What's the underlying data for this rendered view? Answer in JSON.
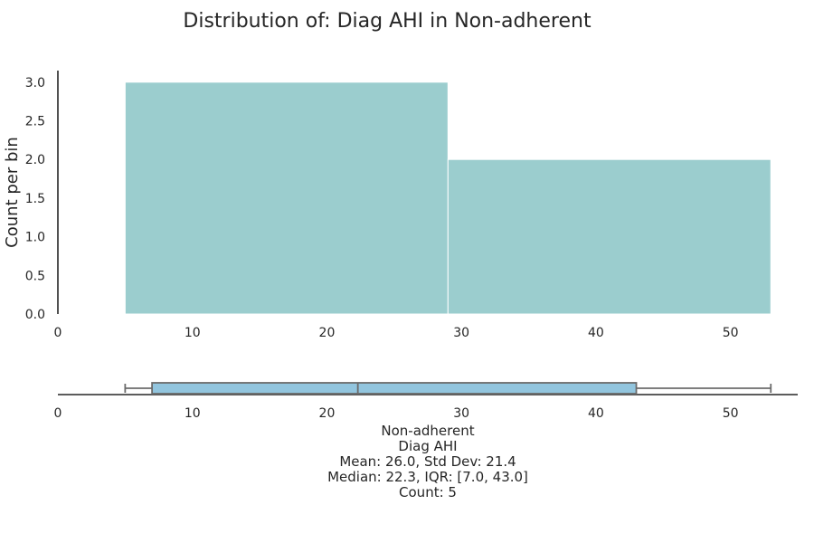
{
  "chart_data": [
    {
      "type": "histogram",
      "title": "Distribution of: Diag AHI in Non-adherent",
      "ylabel": "Count per bin",
      "xlabel": "",
      "xlim": [
        0,
        55
      ],
      "ylim": [
        0,
        3.15
      ],
      "xticks": [
        0,
        10,
        20,
        30,
        40,
        50
      ],
      "yticks": [
        0.0,
        0.5,
        1.0,
        1.5,
        2.0,
        2.5,
        3.0
      ],
      "bins": [
        {
          "x0": 5,
          "x1": 29,
          "count": 3
        },
        {
          "x0": 29,
          "x1": 53,
          "count": 2
        }
      ],
      "grid": false,
      "bar_color": "#9bcdce"
    },
    {
      "type": "boxplot",
      "category": "Non-adherent",
      "variable": "Diag AHI",
      "xlim": [
        0,
        55
      ],
      "xticks": [
        0,
        10,
        20,
        30,
        40,
        50
      ],
      "whisker_low": 5,
      "q1": 7.0,
      "median": 22.3,
      "q3": 43.0,
      "whisker_high": 53,
      "mean": 26.0,
      "std": 21.4,
      "count": 5,
      "box_color": "#92c5de"
    }
  ],
  "stats_lines": [
    "Non-adherent",
    "Diag AHI",
    "Mean: 26.0, Std Dev: 21.4",
    "Median: 22.3, IQR: [7.0, 43.0]",
    "Count: 5"
  ]
}
